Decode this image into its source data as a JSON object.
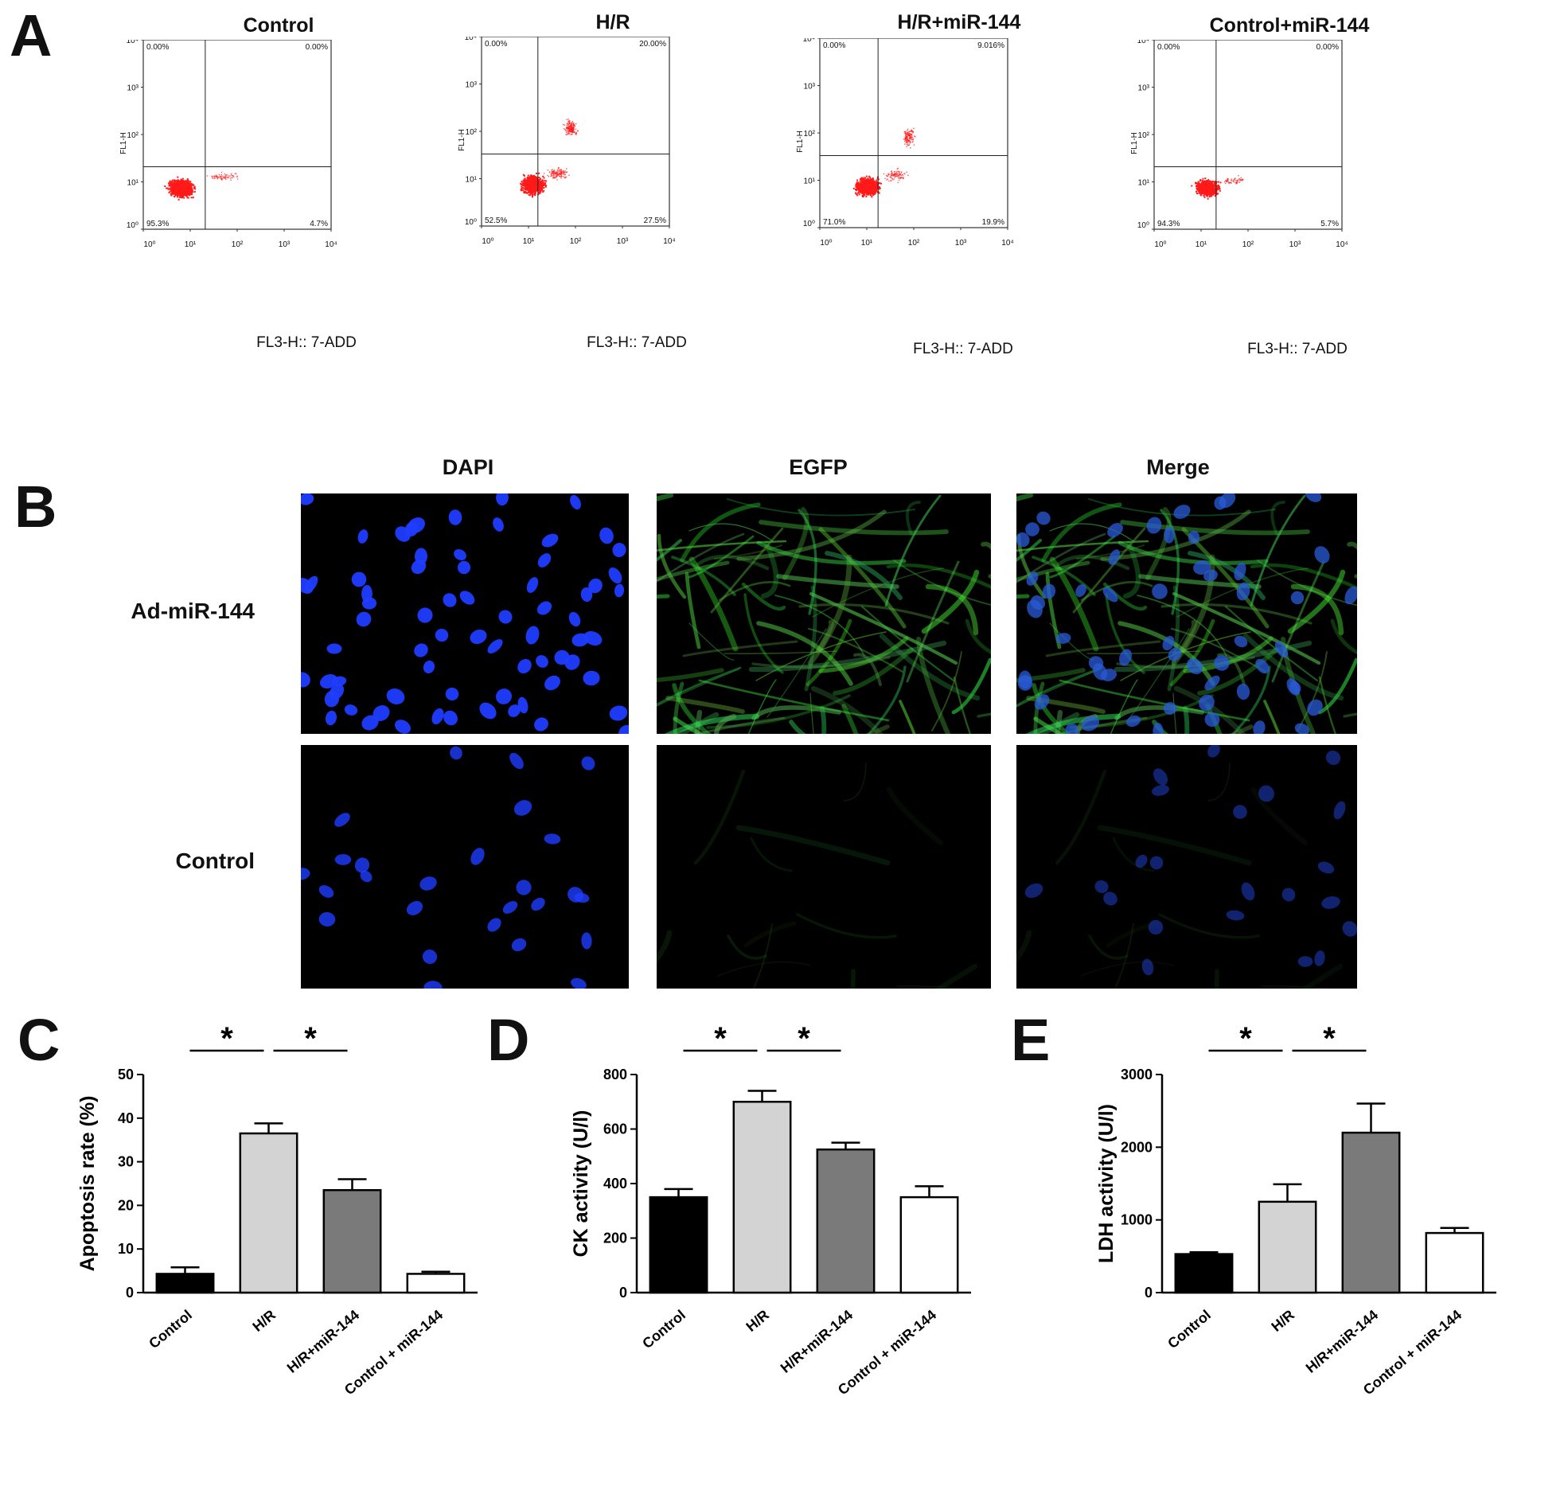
{
  "figure": {
    "panel_a": {
      "letter": "A",
      "plots": [
        {
          "title": "Control",
          "xlabel": "FL3-H:: 7-ADD",
          "ylabel": "FL1-H",
          "q_ul": "0.00%",
          "q_ur": "0.00%",
          "q_ll": "95.3%",
          "q_lr": "4.7%"
        },
        {
          "title": "H/R",
          "xlabel": "FL3-H:: 7-ADD",
          "ylabel": "FL1-H",
          "q_ul": "0.00%",
          "q_ur": "20.00%",
          "q_ll": "52.5%",
          "q_lr": "27.5%"
        },
        {
          "title": "H/R+miR-144",
          "xlabel": "FL3-H:: 7-ADD",
          "ylabel": "FL1-H",
          "q_ul": "0.00%",
          "q_ur": "9.016%",
          "q_ll": "71.0%",
          "q_lr": "19.9%"
        },
        {
          "title": "Control+miR-144",
          "xlabel": "FL3-H:: 7-ADD",
          "ylabel": "FL1-H",
          "q_ul": "0.00%",
          "q_ur": "0.00%",
          "q_ll": "94.3%",
          "q_lr": "5.7%"
        }
      ],
      "tick_labels": [
        "10⁰",
        "10¹",
        "10²",
        "10³",
        "10⁴"
      ]
    },
    "panel_b": {
      "letter": "B",
      "columns": [
        "DAPI",
        "EGFP",
        "Merge"
      ],
      "rows": [
        "Ad-miR-144",
        "Control"
      ]
    },
    "panel_c": {
      "letter": "C"
    },
    "panel_d": {
      "letter": "D"
    },
    "panel_e": {
      "letter": "E"
    }
  },
  "chart_data": [
    {
      "type": "bar",
      "categories": [
        "Control",
        "H/R",
        "H/R+miR-144",
        "Control + miR-144"
      ],
      "values": [
        4.3,
        36.5,
        23.5,
        4.3
      ],
      "errors": [
        1.5,
        2.3,
        2.5,
        0.5
      ],
      "ylabel": "Apoptosis rate (%)",
      "ylim": [
        0,
        50
      ],
      "yticks": [
        0,
        10,
        20,
        30,
        40,
        50
      ],
      "colors": [
        "#000000",
        "#d3d3d3",
        "#7a7a7a",
        "#ffffff"
      ],
      "significance": [
        "*",
        "*"
      ]
    },
    {
      "type": "bar",
      "categories": [
        "Control",
        "H/R",
        "H/R+miR-144",
        "Control + miR-144"
      ],
      "values": [
        350,
        700,
        525,
        350
      ],
      "errors": [
        30,
        40,
        25,
        40
      ],
      "ylabel": "CK activity (U/l)",
      "ylim": [
        0,
        800
      ],
      "yticks": [
        0,
        200,
        400,
        600,
        800
      ],
      "colors": [
        "#000000",
        "#d3d3d3",
        "#7a7a7a",
        "#ffffff"
      ],
      "significance": [
        "*",
        "*"
      ]
    },
    {
      "type": "bar",
      "categories": [
        "Control",
        "H/R",
        "H/R+miR-144",
        "Control + miR-144"
      ],
      "values": [
        530,
        1250,
        2200,
        820
      ],
      "errors": [
        25,
        240,
        400,
        70
      ],
      "ylabel": "LDH activity (U/l)",
      "ylim": [
        0,
        3000
      ],
      "yticks": [
        0,
        1000,
        2000,
        3000
      ],
      "colors": [
        "#000000",
        "#d3d3d3",
        "#7a7a7a",
        "#ffffff"
      ],
      "significance": [
        "*",
        "*"
      ]
    }
  ]
}
